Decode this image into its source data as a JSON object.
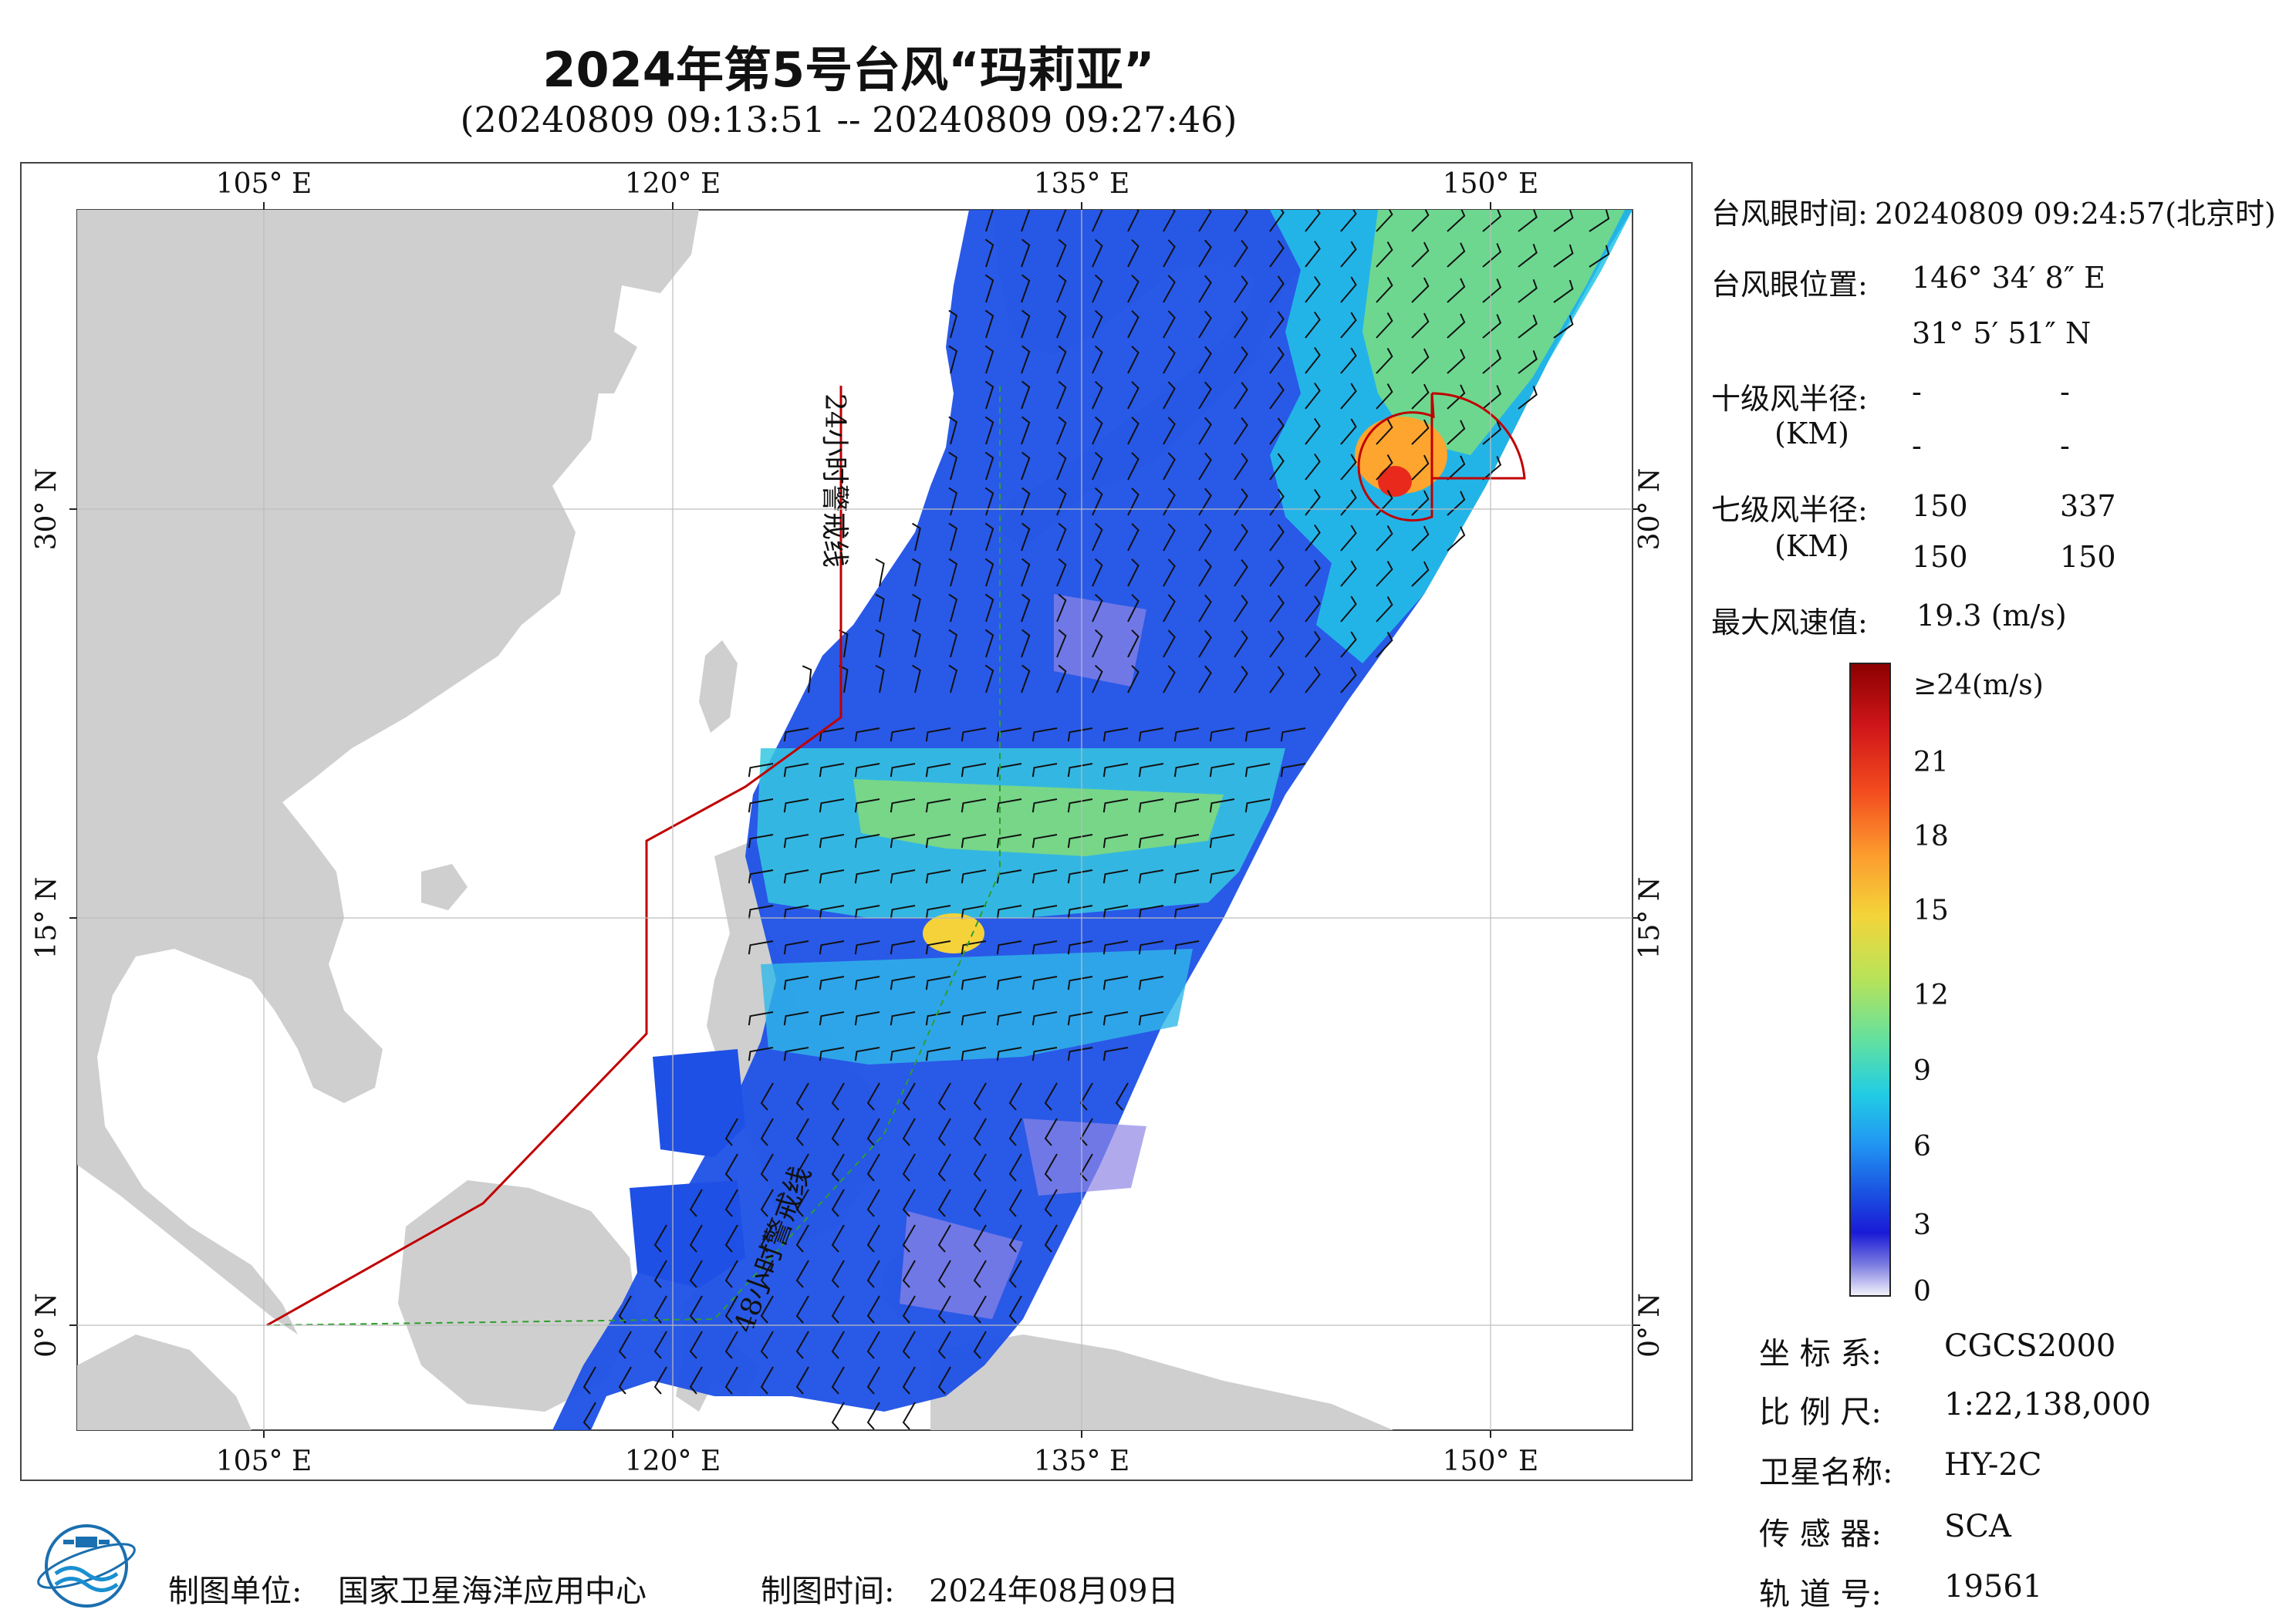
{
  "title": "2024年第5号台风“玛莉亚”",
  "subtitle": "(20240809 09:13:51 -- 20240809 09:27:46)",
  "map": {
    "lon_ticks": [
      "105° E",
      "120° E",
      "135° E",
      "150° E"
    ],
    "lat_ticks": [
      "30° N",
      "15° N",
      "0° N"
    ],
    "labels": {
      "warning_24h": "24小时警戒线",
      "warning_48h": "48小时警戒线"
    },
    "colors": {
      "land": "#cfcfcf",
      "ocean": "#ffffff",
      "warning_line": "#c00000",
      "warning_48_line": "#2e9e2e",
      "barb": "#111111"
    }
  },
  "info": {
    "eye_time_label": "台风眼时间:",
    "eye_time_value": "20240809 09:24:57(北京时)",
    "eye_position_label": "台风眼位置:",
    "eye_lon": "146° 34′ 8″ E",
    "eye_lat": "31° 5′ 51″ N",
    "r10_label": "十级风半径:",
    "r10_unit": "(KM)",
    "r10_values": [
      "-",
      "-",
      "-",
      "-"
    ],
    "r7_label": "七级风半径:",
    "r7_unit": "(KM)",
    "r7_values": [
      "150",
      "337",
      "150",
      "150"
    ],
    "max_wind_label": "最大风速值:",
    "max_wind_value": "19.3  (m/s)"
  },
  "colorbar": {
    "labels": [
      "≥24(m/s)",
      "21",
      "18",
      "15",
      "12",
      "9",
      "6",
      "3",
      "0"
    ],
    "colors": [
      "#8b0000",
      "#e31a1c",
      "#ff7f00",
      "#fdbf2f",
      "#c8e64b",
      "#6fe28e",
      "#21d0e0",
      "#2196f3",
      "#1a4fe0",
      "#1a1ad6",
      "#7a7ae0",
      "#e6e6fa"
    ]
  },
  "meta": {
    "coord_label": "坐 标 系:",
    "coord_value": "CGCS2000",
    "scale_label": "比 例 尺:",
    "scale_value": "1:22,138,000",
    "satellite_label": "卫星名称:",
    "satellite_value": "HY-2C",
    "sensor_label": "传 感 器:",
    "sensor_value": "SCA",
    "orbit_label": "轨 道 号:",
    "orbit_value": "19561"
  },
  "footer": {
    "unit_label": "制图单位:",
    "unit_value": "国家卫星海洋应用中心",
    "time_label": "制图时间:",
    "time_value": "2024年08月09日"
  }
}
